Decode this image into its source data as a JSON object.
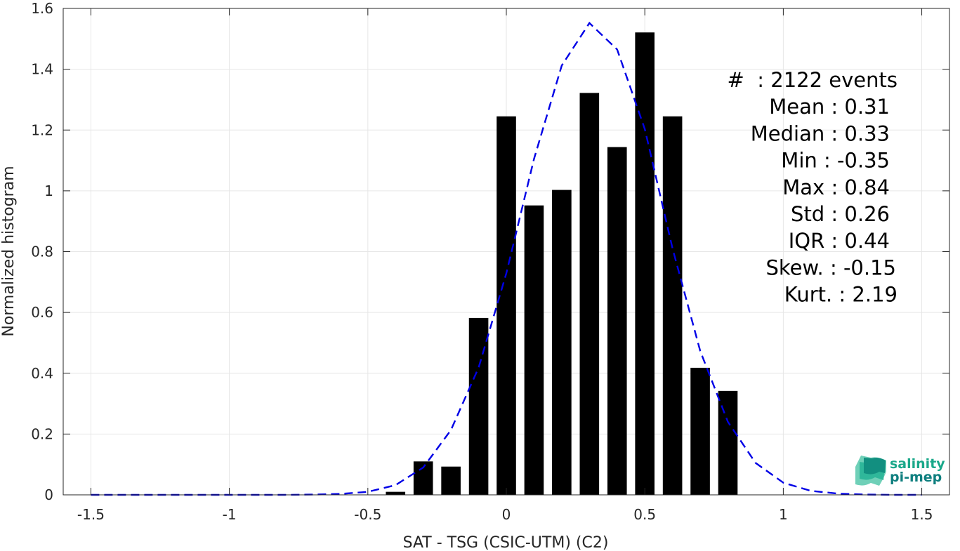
{
  "chart_data": {
    "type": "bar",
    "xlabel": "SAT - TSG (CSIC-UTM) (C2)",
    "ylabel": "Normalized histogram",
    "xlim": [
      -1.6,
      1.6
    ],
    "ylim": [
      0,
      1.6
    ],
    "grid": true,
    "x_ticks": [
      -1.5,
      -1,
      -0.5,
      0,
      0.5,
      1,
      1.5
    ],
    "x_tick_labels": [
      "-1.5",
      "-1",
      "-0.5",
      "0",
      "0.5",
      "1",
      "1.5"
    ],
    "y_ticks": [
      0,
      0.2,
      0.4,
      0.6,
      0.8,
      1,
      1.2,
      1.4,
      1.6
    ],
    "y_tick_labels": [
      "0",
      "0.2",
      "0.4",
      "0.6",
      "0.8",
      "1",
      "1.2",
      "1.4",
      "1.6"
    ],
    "bar_color": "#000000",
    "bar_width": 0.07,
    "bars": {
      "x": [
        -0.4,
        -0.3,
        -0.2,
        -0.1,
        0,
        0.1,
        0.2,
        0.3,
        0.4,
        0.5,
        0.6,
        0.7,
        0.8
      ],
      "values": [
        0.01,
        0.11,
        0.093,
        0.582,
        1.245,
        0.952,
        1.003,
        1.322,
        1.144,
        1.521,
        1.245,
        0.418,
        0.342
      ]
    },
    "fit_curve": {
      "style": "dashed",
      "color": "#0000e6",
      "x": [
        -1.5,
        -1.4,
        -1.3,
        -1.2,
        -1.1,
        -1.0,
        -0.9,
        -0.8,
        -0.7,
        -0.6,
        -0.5,
        -0.4,
        -0.3,
        -0.2,
        -0.1,
        0,
        0.1,
        0.2,
        0.3,
        0.4,
        0.5,
        0.6,
        0.7,
        0.8,
        0.9,
        1.0,
        1.1,
        1.2,
        1.3,
        1.4,
        1.5
      ],
      "y": [
        0,
        0,
        0,
        0,
        0,
        0,
        0,
        0,
        0.001,
        0.003,
        0.01,
        0.032,
        0.09,
        0.213,
        0.419,
        0.729,
        1.105,
        1.412,
        1.552,
        1.465,
        1.203,
        0.811,
        0.473,
        0.24,
        0.105,
        0.04,
        0.013,
        0.004,
        0.001,
        0,
        0
      ]
    },
    "stats": [
      "#  : 2122 events",
      "Mean : 0.31",
      "Median : 0.33",
      "Min : -0.35",
      "Max : 0.84",
      "Std : 0.26",
      "IQR : 0.44",
      "Skew. : -0.15",
      "Kurt. : 2.19"
    ]
  },
  "logo": {
    "line1": "salinity",
    "line2": "pi-mep",
    "color_line1": "#1aa88a",
    "color_line2": "#0f7f7f"
  }
}
